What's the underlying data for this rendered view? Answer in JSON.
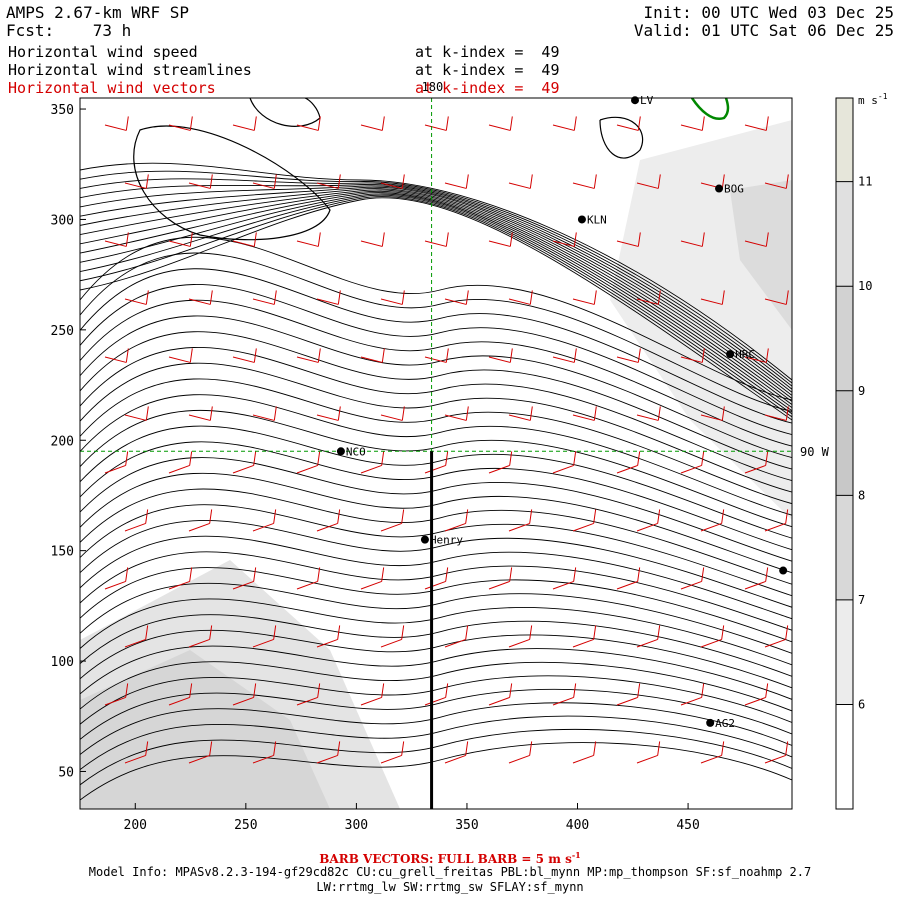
{
  "header": {
    "title": "AMPS 2.67-km WRF SP",
    "init": "Init: 00 UTC Wed 03 Dec 25",
    "fcst": "Fcst:    73 h",
    "valid": "Valid: 01 UTC Sat 06 Dec 25"
  },
  "fields": [
    {
      "name": "Horizontal wind speed",
      "level": "at k-index =  49",
      "color": "#000000"
    },
    {
      "name": "Horizontal wind streamlines",
      "level": "at k-index =  49",
      "color": "#000000"
    },
    {
      "name": "Horizontal wind vectors",
      "level": "at k-index =  49",
      "color": "#d40000"
    }
  ],
  "map": {
    "x_ticks": [
      "200",
      "250",
      "300",
      "350",
      "400",
      "450"
    ],
    "y_ticks": [
      "350",
      "300",
      "250",
      "200",
      "150",
      "100",
      "50"
    ],
    "xlim": [
      175,
      497
    ],
    "ylim": [
      33,
      355
    ],
    "meridian_label": "180",
    "longitude_label": "90 W",
    "cross_section": {
      "x": 334,
      "y_top": 195,
      "y_bottom": 33
    },
    "stations": [
      {
        "name": "LV",
        "x": 426,
        "y": 354
      },
      {
        "name": "BOG",
        "x": 464,
        "y": 314
      },
      {
        "name": "KLN",
        "x": 402,
        "y": 300
      },
      {
        "name": "HRC",
        "x": 469,
        "y": 239
      },
      {
        "name": "NCO",
        "x": 293,
        "y": 195
      },
      {
        "name": "Henry",
        "x": 331,
        "y": 155
      },
      {
        "name": "",
        "x": 493,
        "y": 141
      },
      {
        "name": "AG2",
        "x": 460,
        "y": 72
      }
    ]
  },
  "colorbar": {
    "units": "m s",
    "units_exp": "-1",
    "ticks": [
      "11",
      "10",
      "9",
      "8",
      "7",
      "6"
    ],
    "colors": [
      "#e6e6da",
      "#e0e0e0",
      "#d2d2d2",
      "#c8c8c8",
      "#d8d8d8",
      "#ececec",
      "#ffffff"
    ],
    "ticks_data": [
      11,
      10,
      9,
      8,
      7,
      6
    ],
    "range": [
      5.0,
      11.8
    ]
  },
  "footer": {
    "barb_note": "BARB VECTORS: FULL BARB = 5 m s",
    "barb_exp": "-1",
    "model_info": "Model Info: MPASv8.2.3-194-gf29cd82c CU:cu_grell_freitas PBL:bl_mynn MP:mp_thompson SF:sf_noahmp 2.7",
    "model_info2": "LW:rrtmg_lw SW:rrtmg_sw SFLAY:sf_mynn"
  }
}
